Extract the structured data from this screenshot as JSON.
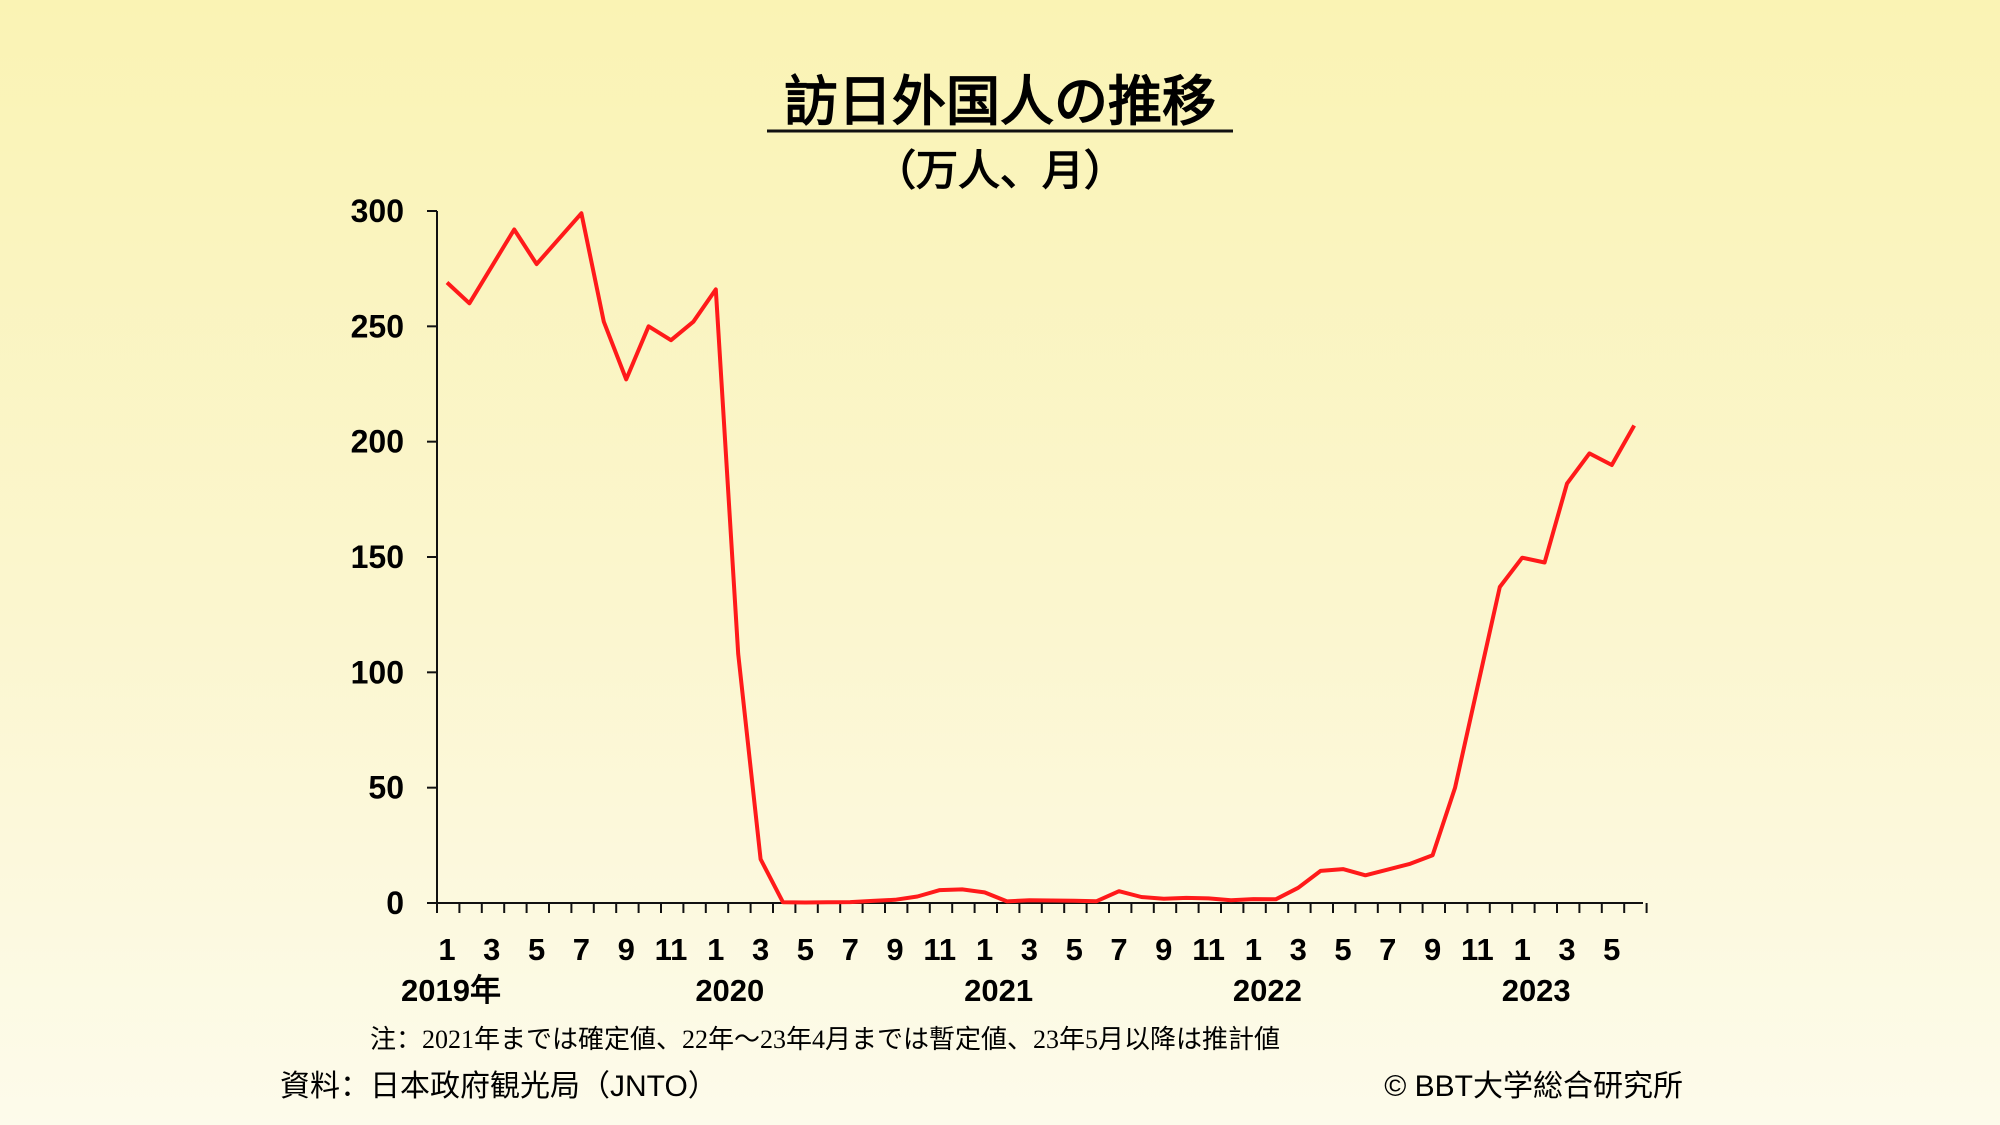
{
  "chart_data": {
    "type": "line",
    "title": "訪日外国人の推移",
    "subtitle": "（万人、月）",
    "ylim": [
      0,
      300
    ],
    "yticks": [
      0,
      50,
      100,
      150,
      200,
      250,
      300
    ],
    "x_tick_labels": [
      "1",
      "3",
      "5",
      "7",
      "9",
      "11",
      "1",
      "3",
      "5",
      "7",
      "9",
      "11",
      "1",
      "3",
      "5",
      "7",
      "9",
      "11",
      "1",
      "3",
      "5",
      "7",
      "9",
      "11",
      "1",
      "3",
      "5"
    ],
    "year_labels": [
      {
        "label": "2019年",
        "index": 0
      },
      {
        "label": "2020",
        "index": 12
      },
      {
        "label": "2021",
        "index": 24
      },
      {
        "label": "2022",
        "index": 36
      },
      {
        "label": "2023",
        "index": 48
      }
    ],
    "series": [
      {
        "color": "#ff1a1a",
        "values": [
          269,
          260,
          276,
          292,
          277,
          288,
          299,
          252,
          227,
          250,
          244,
          252,
          266,
          108,
          19,
          0.3,
          0.2,
          0.3,
          0.4,
          0.9,
          1.4,
          2.8,
          5.6,
          5.9,
          4.6,
          0.7,
          1.2,
          1.1,
          1.0,
          0.8,
          5.1,
          2.6,
          1.8,
          2.2,
          2.0,
          1.2,
          1.7,
          1.6,
          6.6,
          13.9,
          14.7,
          12.0,
          14.5,
          17.0,
          20.7,
          49.9,
          93.5,
          137.0,
          149.7,
          147.6,
          181.8,
          194.9,
          189.9,
          207.0
        ]
      }
    ],
    "note": "注：2021年までは確定値、22年〜23年4月までは暫定値、23年5月以降は推計値",
    "source": "資料：日本政府観光局（JNTO）",
    "copyright": "© BBT大学総合研究所"
  }
}
